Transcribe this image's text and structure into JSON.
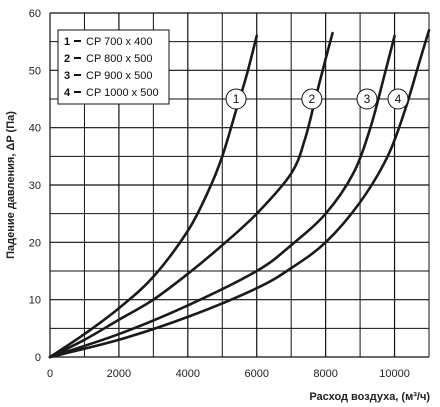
{
  "chart_data": {
    "type": "line",
    "xlabel": "Расход воздуха, (м³/ч)",
    "ylabel": "Падение давления, ΔP (Па)",
    "xlim": [
      0,
      11000
    ],
    "ylim": [
      0,
      60
    ],
    "xticks": [
      "0",
      "2000",
      "4000",
      "6000",
      "8000",
      "10000"
    ],
    "yticks": [
      "0",
      "10",
      "20",
      "30",
      "40",
      "50",
      "60"
    ],
    "grid": true,
    "legend_position": "top-left",
    "legend": [
      {
        "num": "1",
        "text": "CP  700 x 400"
      },
      {
        "num": "2",
        "text": "CP  800 x 500"
      },
      {
        "num": "3",
        "text": "CP  900 x 500"
      },
      {
        "num": "4",
        "text": "CP  1000 x 500"
      }
    ],
    "series": [
      {
        "label": "1",
        "label_at": [
          5400,
          45
        ],
        "points": [
          [
            0,
            0
          ],
          [
            1000,
            4
          ],
          [
            2000,
            8.5
          ],
          [
            3000,
            14
          ],
          [
            4000,
            22
          ],
          [
            4600,
            29
          ],
          [
            5000,
            35
          ],
          [
            5400,
            43
          ],
          [
            5700,
            49
          ],
          [
            6000,
            56
          ]
        ]
      },
      {
        "label": "2",
        "label_at": [
          7600,
          45
        ],
        "points": [
          [
            0,
            0
          ],
          [
            1000,
            3
          ],
          [
            2000,
            6.5
          ],
          [
            3000,
            10
          ],
          [
            4000,
            14.5
          ],
          [
            5000,
            19.5
          ],
          [
            6000,
            25
          ],
          [
            7000,
            32
          ],
          [
            7400,
            38
          ],
          [
            7700,
            45
          ],
          [
            8000,
            52
          ],
          [
            8200,
            56.5
          ]
        ]
      },
      {
        "label": "3",
        "label_at": [
          9200,
          45
        ],
        "points": [
          [
            0,
            0
          ],
          [
            2000,
            4
          ],
          [
            4000,
            9
          ],
          [
            6000,
            15
          ],
          [
            7000,
            19.5
          ],
          [
            8000,
            25
          ],
          [
            8800,
            32
          ],
          [
            9300,
            40
          ],
          [
            9700,
            49
          ],
          [
            10000,
            56
          ]
        ]
      },
      {
        "label": "4",
        "label_at": [
          10100,
          45
        ],
        "points": [
          [
            0,
            0
          ],
          [
            2000,
            3
          ],
          [
            4000,
            7
          ],
          [
            6000,
            12
          ],
          [
            7000,
            15.5
          ],
          [
            8000,
            20
          ],
          [
            9000,
            27
          ],
          [
            9800,
            35
          ],
          [
            10300,
            43
          ],
          [
            10700,
            51
          ],
          [
            11000,
            57
          ]
        ]
      }
    ]
  }
}
